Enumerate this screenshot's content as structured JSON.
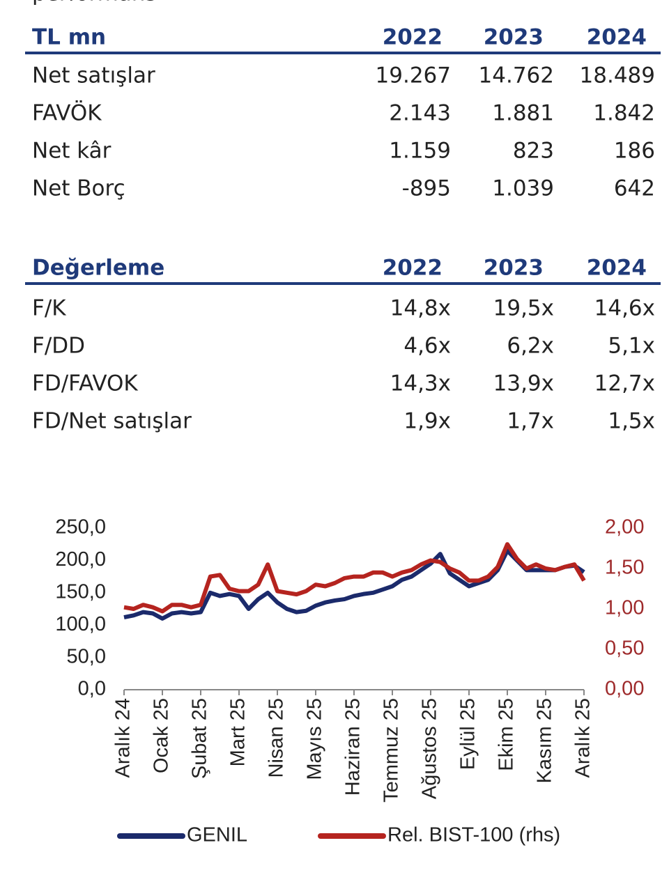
{
  "header": {
    "title": "performans"
  },
  "tables": [
    {
      "columns": [
        "TL mn",
        "2022",
        "2023",
        "2024"
      ],
      "rows": [
        [
          "Net satışlar",
          "19.267",
          "14.762",
          "18.489"
        ],
        [
          "FAVÖK",
          "2.143",
          "1.881",
          "1.842"
        ],
        [
          "Net kâr",
          "1.159",
          "823",
          "186"
        ],
        [
          "Net Borç",
          "-895",
          "1.039",
          "642"
        ]
      ]
    },
    {
      "columns": [
        "Değerleme",
        "2022",
        "2023",
        "2024"
      ],
      "rows": [
        [
          "F/K",
          "14,8x",
          "19,5x",
          "14,6x"
        ],
        [
          "F/DD",
          "4,6x",
          "6,2x",
          "5,1x"
        ],
        [
          "FD/FAVOK",
          "14,3x",
          "13,9x",
          "12,7x"
        ],
        [
          "FD/Net satışlar",
          "1,9x",
          "1,7x",
          "1,5x"
        ]
      ]
    }
  ],
  "chart_data": {
    "type": "line",
    "categories": [
      "Aralık 24",
      null,
      null,
      null,
      "Ocak 25",
      null,
      null,
      null,
      "Şubat 25",
      null,
      null,
      null,
      "Mart 25",
      null,
      null,
      null,
      "Nisan 25",
      null,
      null,
      null,
      "Mayıs 25",
      null,
      null,
      null,
      "Haziran 25",
      null,
      null,
      null,
      "Temmuz 25",
      null,
      null,
      null,
      "Ağustos 25",
      null,
      null,
      null,
      "Eylül 25",
      null,
      null,
      null,
      "Ekim 25",
      null,
      null,
      null,
      "Kasım 25",
      null,
      null,
      null,
      "Aralık 25"
    ],
    "series": [
      {
        "name": "GENIL",
        "color": "#1b2a6b",
        "values": [
          112,
          115,
          120,
          118,
          110,
          118,
          120,
          118,
          120,
          150,
          145,
          148,
          145,
          125,
          140,
          150,
          135,
          125,
          120,
          122,
          130,
          135,
          138,
          140,
          145,
          148,
          150,
          155,
          160,
          170,
          175,
          185,
          195,
          210,
          180,
          170,
          160,
          165,
          170,
          185,
          215,
          200,
          185,
          185,
          185,
          185,
          190,
          192,
          182
        ]
      },
      {
        "name": "Rel. BIST-100 (rhs)",
        "color": "#b5241f",
        "axis": "y2",
        "values": [
          1.02,
          1.0,
          1.05,
          1.02,
          0.97,
          1.05,
          1.05,
          1.02,
          1.05,
          1.4,
          1.42,
          1.25,
          1.22,
          1.22,
          1.3,
          1.55,
          1.22,
          1.2,
          1.18,
          1.22,
          1.3,
          1.28,
          1.32,
          1.38,
          1.4,
          1.4,
          1.45,
          1.45,
          1.4,
          1.45,
          1.48,
          1.55,
          1.6,
          1.58,
          1.5,
          1.45,
          1.35,
          1.35,
          1.4,
          1.52,
          1.8,
          1.62,
          1.5,
          1.55,
          1.5,
          1.48,
          1.52,
          1.55,
          1.35
        ]
      }
    ],
    "ylim": [
      0,
      250
    ],
    "yticks": [
      {
        "value": 0,
        "label": "0,0"
      },
      {
        "value": 50,
        "label": "50,0"
      },
      {
        "value": 100,
        "label": "100,0"
      },
      {
        "value": 150,
        "label": "150,0"
      },
      {
        "value": 200,
        "label": "200,0"
      },
      {
        "value": 250,
        "label": "250,0"
      }
    ],
    "y2lim": [
      0,
      2
    ],
    "y2ticks": [
      {
        "value": 0,
        "label": "0,00"
      },
      {
        "value": 0.5,
        "label": "0,50"
      },
      {
        "value": 1,
        "label": "1,00"
      },
      {
        "value": 1.5,
        "label": "1,50"
      },
      {
        "value": 2,
        "label": "2,00"
      }
    ],
    "y2color": "#9e2a2b",
    "legend": "bottom"
  }
}
